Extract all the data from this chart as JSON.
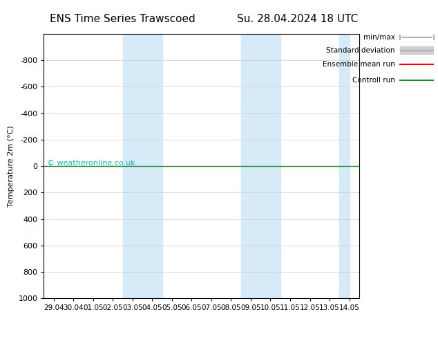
{
  "title_left": "ENS Time Series Trawscoed",
  "title_right": "Su. 28.04.2024 18 UTC",
  "ylabel": "Temperature 2m (°C)",
  "watermark": "© weatheronline.co.uk",
  "ylim_top": -1000,
  "ylim_bottom": 1000,
  "yticks": [
    -800,
    -600,
    -400,
    -200,
    0,
    200,
    400,
    600,
    800,
    1000
  ],
  "xtick_labels": [
    "29.04",
    "30.04",
    "01.05",
    "02.05",
    "03.05",
    "04.05",
    "05.05",
    "06.05",
    "07.05",
    "08.05",
    "09.05",
    "10.05",
    "11.05",
    "12.05",
    "13.05",
    "14.05"
  ],
  "xtick_positions": [
    0,
    1,
    2,
    3,
    4,
    5,
    6,
    7,
    8,
    9,
    10,
    11,
    12,
    13,
    14,
    15
  ],
  "blue_bands": [
    [
      4,
      5
    ],
    [
      5,
      6
    ],
    [
      10,
      11
    ],
    [
      11,
      12
    ],
    [
      15,
      15.5
    ]
  ],
  "blue_band_color": "#d6eaf8",
  "control_run_y": 0,
  "control_run_color": "#228B22",
  "ensemble_mean_color": "#ff0000",
  "std_dev_color": "#d0d0d0",
  "minmax_color": "#a0a0a0",
  "bg_color": "#ffffff",
  "plot_bg_color": "#ffffff",
  "legend_items": [
    "min/max",
    "Standard deviation",
    "Ensemble mean run",
    "Controll run"
  ],
  "legend_colors": [
    "#808080",
    "#c0c0c0",
    "#ff0000",
    "#228B22"
  ]
}
